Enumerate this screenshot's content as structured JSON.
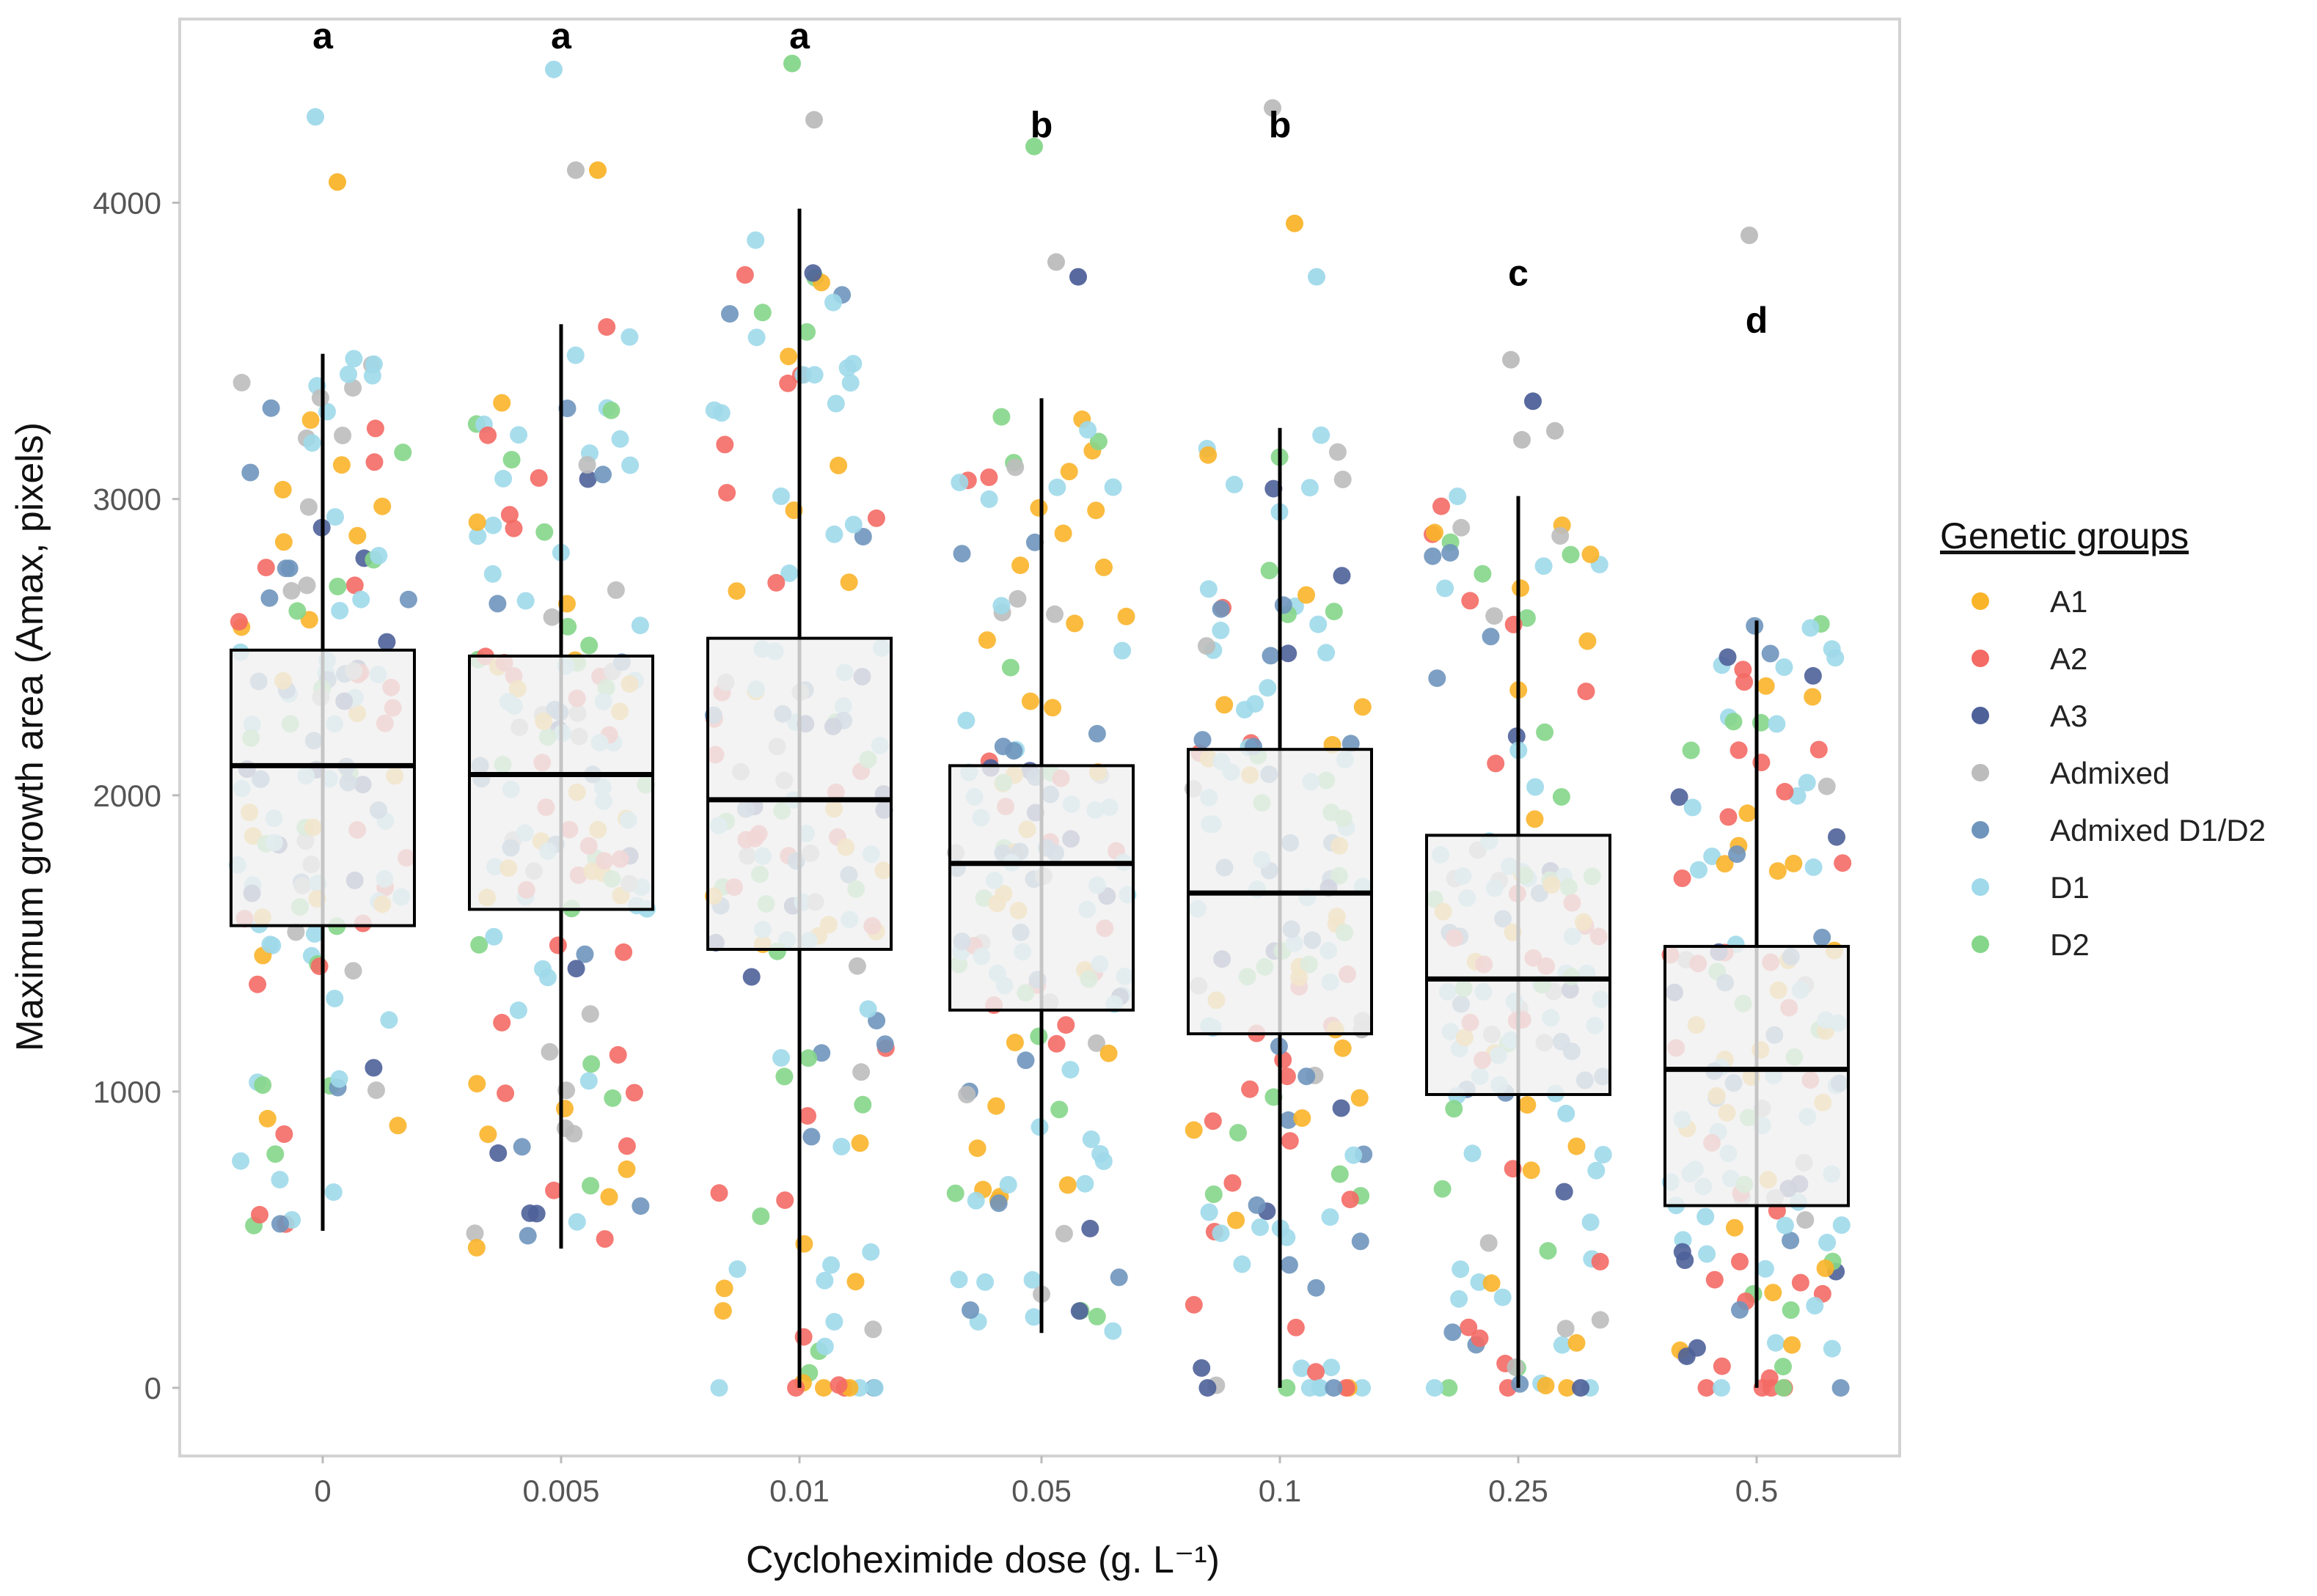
{
  "chart_data": {
    "type": "box",
    "title": "",
    "xlabel": "Cycloheximide dose (g. L⁻¹)",
    "ylabel": "Maximum growth area (Amax, pixels)",
    "ylim": [
      -230,
      4620
    ],
    "yticks": [
      0,
      1000,
      2000,
      3000,
      4000
    ],
    "ytick_labels": [
      "0",
      "1000",
      "2000",
      "3000",
      "4000"
    ],
    "categories": [
      "0",
      "0.005",
      "0.01",
      "0.05",
      "0.1",
      "0.25",
      "0.5"
    ],
    "boxes": [
      {
        "category": "0",
        "q1": 1560,
        "median": 2100,
        "q3": 2490,
        "whisker_low": 530,
        "whisker_high": 3490,
        "letter": "a",
        "letter_y": 4560,
        "n": 150,
        "outliers": [
          {
            "y": 4290,
            "group": "D1"
          },
          {
            "y": 4070,
            "group": "A1"
          }
        ]
      },
      {
        "category": "0.005",
        "q1": 1615,
        "median": 2070,
        "q3": 2470,
        "whisker_low": 470,
        "whisker_high": 3590,
        "letter": "a",
        "letter_y": 4560,
        "n": 150,
        "outliers": [
          {
            "y": 4450,
            "group": "D1"
          },
          {
            "y": 4110,
            "group": "Admixed"
          },
          {
            "y": 4110,
            "group": "A1"
          }
        ]
      },
      {
        "category": "0.01",
        "q1": 1480,
        "median": 1985,
        "q3": 2530,
        "whisker_low": 0,
        "whisker_high": 3980,
        "letter": "a",
        "letter_y": 4560,
        "n": 150,
        "outliers": [
          {
            "y": 4470,
            "group": "D2"
          },
          {
            "y": 4280,
            "group": "Admixed"
          }
        ]
      },
      {
        "category": "0.05",
        "q1": 1275,
        "median": 1770,
        "q3": 2100,
        "whisker_low": 185,
        "whisker_high": 3340,
        "letter": "b",
        "letter_y": 4260,
        "n": 150,
        "outliers": [
          {
            "y": 4190,
            "group": "D2"
          },
          {
            "y": 3800,
            "group": "Admixed"
          },
          {
            "y": 3750,
            "group": "A3"
          }
        ]
      },
      {
        "category": "0.1",
        "q1": 1195,
        "median": 1670,
        "q3": 2155,
        "whisker_low": 0,
        "whisker_high": 3240,
        "letter": "b",
        "letter_y": 4260,
        "n": 150,
        "outliers": [
          {
            "y": 4320,
            "group": "Admixed"
          },
          {
            "y": 3930,
            "group": "A1"
          },
          {
            "y": 3750,
            "group": "D1"
          }
        ]
      },
      {
        "category": "0.25",
        "q1": 990,
        "median": 1380,
        "q3": 1865,
        "whisker_low": 0,
        "whisker_high": 3010,
        "letter": "c",
        "letter_y": 3760,
        "n": 150,
        "outliers": [
          {
            "y": 3470,
            "group": "Admixed"
          },
          {
            "y": 3330,
            "group": "A3"
          },
          {
            "y": 3230,
            "group": "Admixed"
          },
          {
            "y": 3200,
            "group": "Admixed"
          }
        ]
      },
      {
        "category": "0.5",
        "q1": 615,
        "median": 1075,
        "q3": 1490,
        "whisker_low": 0,
        "whisker_high": 2590,
        "letter": "d",
        "letter_y": 3600,
        "n": 150,
        "outliers": [
          {
            "y": 3890,
            "group": "Admixed"
          }
        ]
      }
    ],
    "legend": {
      "title": "Genetic groups",
      "position": "right",
      "entries": [
        {
          "label": "A1",
          "color": "#F9B42A"
        },
        {
          "label": "A2",
          "color": "#F46A65"
        },
        {
          "label": "A3",
          "color": "#4E6199"
        },
        {
          "label": "Admixed",
          "color": "#BCBCBC"
        },
        {
          "label": "Admixed D1/D2",
          "color": "#6F95BD"
        },
        {
          "label": "D1",
          "color": "#9FD9EA"
        },
        {
          "label": "D2",
          "color": "#85D68A"
        }
      ]
    },
    "grid": false
  }
}
